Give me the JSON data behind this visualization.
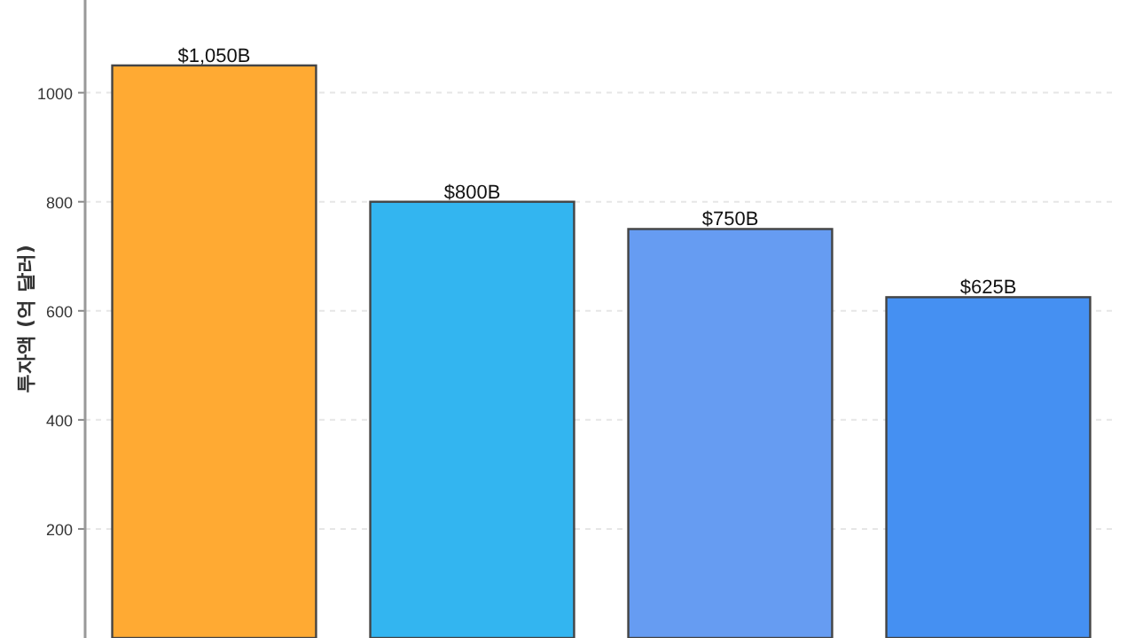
{
  "chart_data": {
    "type": "bar",
    "ylabel": "투자액 (억 달러)",
    "categories": [
      null,
      null,
      null,
      null
    ],
    "values": [
      1050,
      800,
      750,
      625
    ],
    "colors": [
      "#ffaa33",
      "#33b5f0",
      "#669cf2",
      "#4590f2"
    ],
    "value_labels": [
      "$1,050B",
      "$800B",
      "$750B",
      "$625B"
    ],
    "ylim": [
      0,
      1170
    ],
    "yticks": [
      200,
      400,
      600,
      800,
      1000
    ],
    "grid": "y"
  }
}
